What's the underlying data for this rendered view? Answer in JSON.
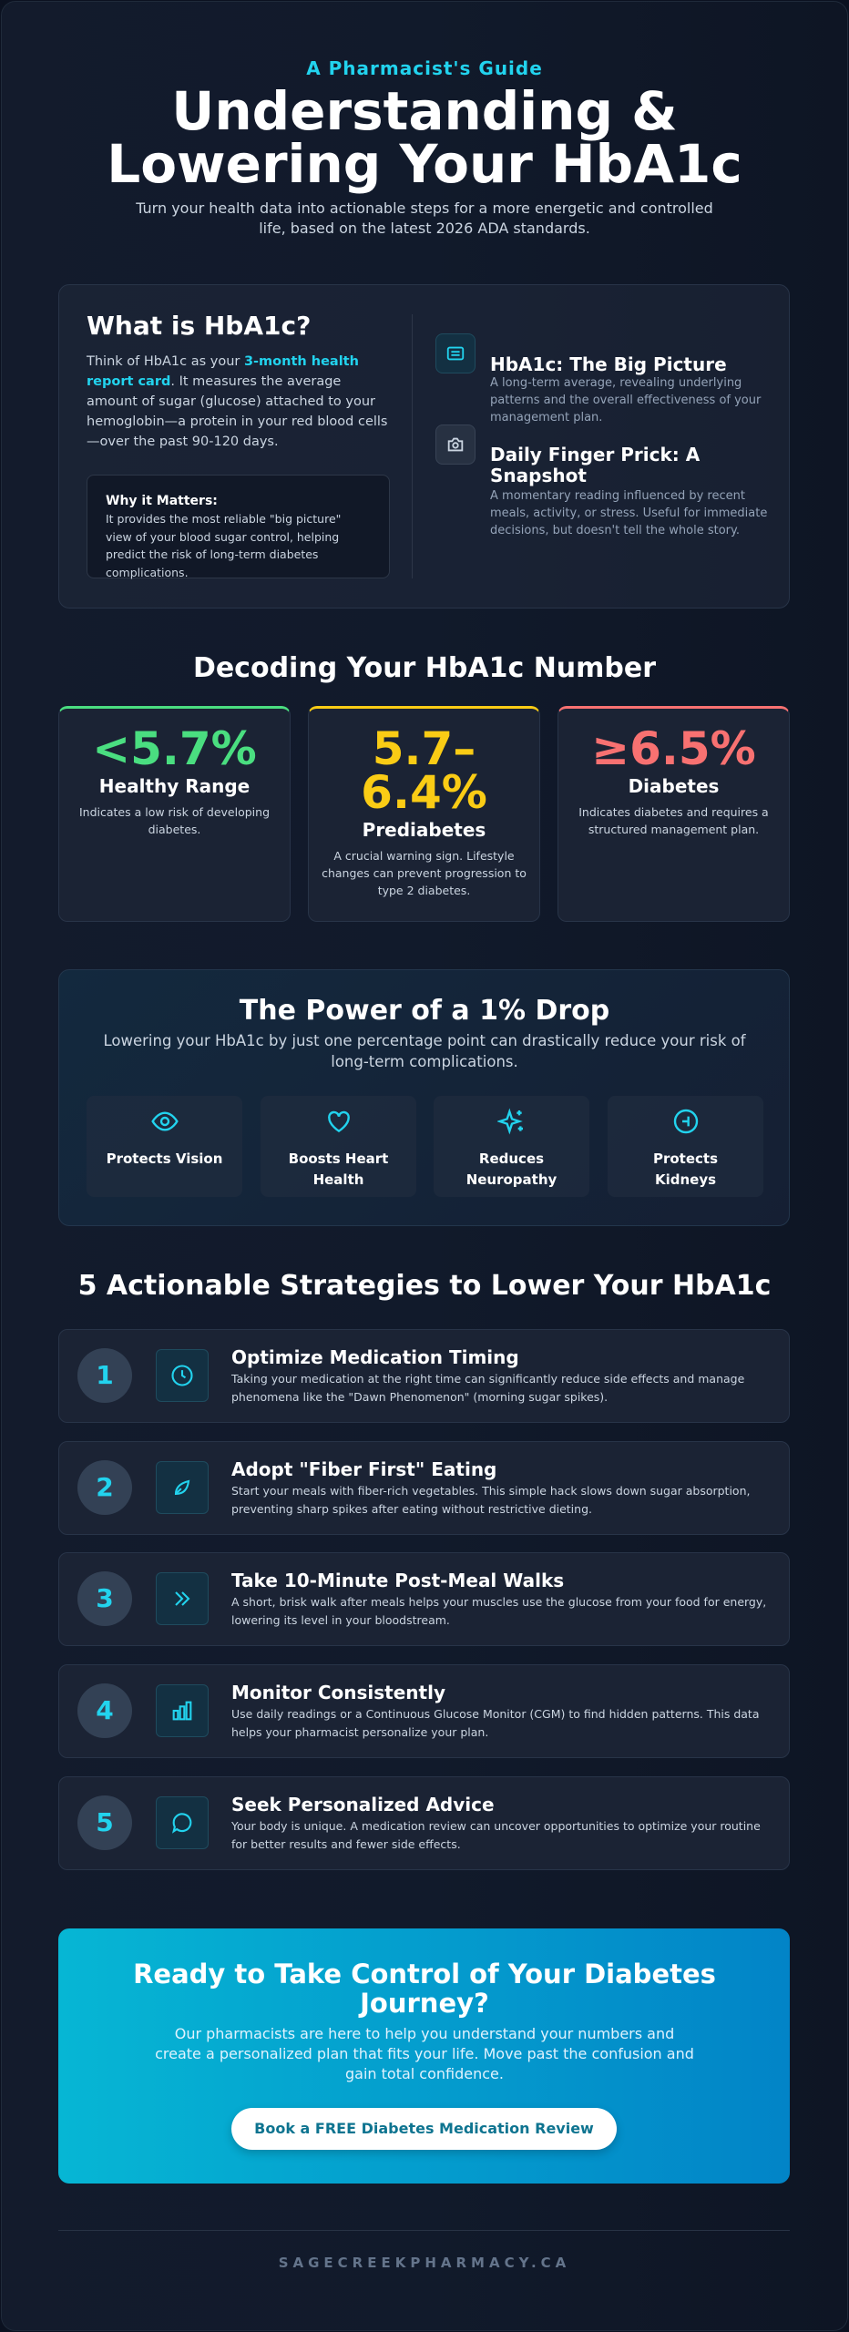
{
  "header": {
    "eyebrow": "A Pharmacist's Guide",
    "title": [
      "Understanding &",
      "Lowering Your HbA1c"
    ],
    "subtitle": "Turn your health data into actionable steps for a more energetic and controlled life, based on the latest 2026 ADA standards."
  },
  "about": {
    "title": "What is HbA1c?",
    "text": [
      "Think of HbA1c as your ",
      "3-month health report card",
      ". It measures the average amount of sugar (glucose) attached to your hemoglobin—a protein in your red blood cells—over the past 90-120 days."
    ],
    "why": {
      "title": "Why it Matters:",
      "text": "It provides the most reliable \"big picture\" view of your blood sugar control, helping predict the risk of long-term diabetes complications."
    },
    "items": [
      {
        "title": "HbA1c: The Big Picture",
        "text": "A long-term average, revealing underlying patterns and the overall effectiveness of your management plan."
      },
      {
        "title": "Daily Finger Prick: A Snapshot",
        "text": "A momentary reading influenced by recent meals, activity, or stress. Useful for immediate decisions, but doesn't tell the whole story."
      }
    ]
  },
  "ranges": {
    "title": "Decoding Your HbA1c Number",
    "cards": [
      {
        "value": "<5.7%",
        "label": "Healthy Range",
        "text": "Indicates a low risk of developing diabetes."
      },
      {
        "value": "5.7–6.4%",
        "label": "Prediabetes",
        "text": "A crucial warning sign. Lifestyle changes can prevent progression to type 2 diabetes."
      },
      {
        "value": "≥6.5%",
        "label": "Diabetes",
        "text": "Indicates diabetes and requires a structured management plan."
      }
    ]
  },
  "power": {
    "title": "The Power of a 1% Drop",
    "subtitle": "Lowering your HbA1c by just one percentage point can drastically reduce your risk of long-term complications.",
    "benefits": [
      "Protects Vision",
      "Boosts Heart Health",
      "Reduces Neuropathy",
      "Protects Kidneys"
    ]
  },
  "strategies": {
    "title": "5 Actionable Strategies to Lower Your HbA1c",
    "items": [
      {
        "number": 1,
        "title": "Optimize Medication Timing",
        "text": "Taking your medication at the right time can significantly reduce side effects and manage phenomena like the \"Dawn Phenomenon\" (morning sugar spikes)."
      },
      {
        "number": 2,
        "title": "Adopt \"Fiber First\" Eating",
        "text": "Start your meals with fiber-rich vegetables. This simple hack slows down sugar absorption, preventing sharp spikes after eating without restrictive dieting."
      },
      {
        "number": 3,
        "title": "Take 10-Minute Post-Meal Walks",
        "text": "A short, brisk walk after meals helps your muscles use the glucose from your food for energy, lowering its level in your bloodstream."
      },
      {
        "number": 4,
        "title": "Monitor Consistently",
        "text": "Use daily readings or a Continuous Glucose Monitor (CGM) to find hidden patterns. This data helps your pharmacist personalize your plan."
      },
      {
        "number": 5,
        "title": "Seek Personalized Advice",
        "text": "Your body is unique. A medication review can uncover opportunities to optimize your routine for better results and fewer side effects."
      }
    ]
  },
  "cta": {
    "title": "Ready to Take Control of Your Diabetes Journey?",
    "text": "Our pharmacists are here to help you understand your numbers and create a personalized plan that fits your life. Move past the confusion and gain total confidence.",
    "button": "Book a FREE Diabetes Medication Review"
  },
  "footer": {
    "website": "SAGECREEKPHARMACY.CA"
  }
}
